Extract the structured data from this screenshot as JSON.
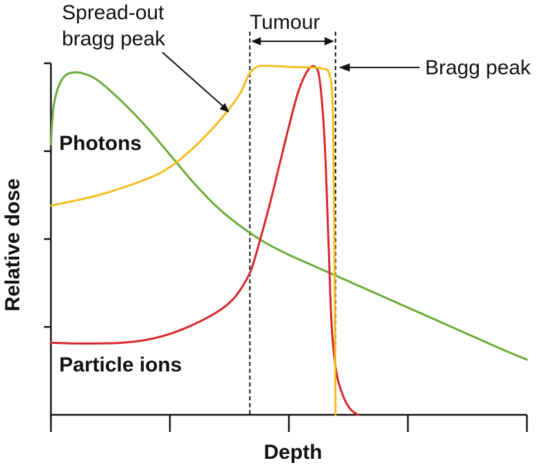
{
  "chart_data": {
    "type": "line",
    "title": "",
    "xlabel": "Depth",
    "ylabel": "Relative dose",
    "xlim": [
      0,
      100
    ],
    "ylim": [
      0,
      100
    ],
    "x_ticks": 4,
    "y_ticks": 4,
    "grid": false,
    "legend": "none",
    "series": [
      {
        "name": "Photons",
        "color": "#6aaa3a",
        "points": [
          [
            0,
            77
          ],
          [
            0.5,
            87
          ],
          [
            1.5,
            93
          ],
          [
            3,
            96.5
          ],
          [
            5,
            97.4
          ],
          [
            7,
            97
          ],
          [
            10,
            95
          ],
          [
            15,
            89
          ],
          [
            20,
            82
          ],
          [
            25,
            74
          ],
          [
            30,
            66
          ],
          [
            35,
            59
          ],
          [
            40,
            53.5
          ],
          [
            45,
            49
          ],
          [
            50,
            45.5
          ],
          [
            55,
            42.5
          ],
          [
            60,
            39.5
          ],
          [
            65,
            36.5
          ],
          [
            70,
            33.5
          ],
          [
            75,
            30.5
          ],
          [
            80,
            27.5
          ],
          [
            85,
            24.5
          ],
          [
            90,
            21.5
          ],
          [
            95,
            18.5
          ],
          [
            100,
            15.7
          ]
        ]
      },
      {
        "name": "Particle ions",
        "color": "#d7262b",
        "points": [
          [
            0,
            20.5
          ],
          [
            5,
            20.3
          ],
          [
            10,
            20.3
          ],
          [
            15,
            20.5
          ],
          [
            20,
            21.3
          ],
          [
            25,
            23
          ],
          [
            30,
            25.7
          ],
          [
            35,
            29.3
          ],
          [
            38,
            32.5
          ],
          [
            40,
            36
          ],
          [
            42,
            41
          ],
          [
            44,
            50
          ],
          [
            46,
            60
          ],
          [
            48,
            71
          ],
          [
            50,
            82
          ],
          [
            52,
            92
          ],
          [
            54,
            98
          ],
          [
            55.5,
            99
          ],
          [
            56.5,
            95
          ],
          [
            57.5,
            78
          ],
          [
            58.3,
            50
          ],
          [
            59,
            25
          ],
          [
            60,
            12
          ],
          [
            61.5,
            5
          ],
          [
            63,
            1.5
          ],
          [
            64.5,
            0
          ]
        ]
      },
      {
        "name": "Spread-out bragg peak",
        "color": "#f4bd1e",
        "points": [
          [
            0,
            59.5
          ],
          [
            10,
            62.5
          ],
          [
            20,
            67
          ],
          [
            25,
            70.5
          ],
          [
            30,
            76
          ],
          [
            35,
            83
          ],
          [
            38,
            88
          ],
          [
            40,
            92
          ],
          [
            41.5,
            96.5
          ],
          [
            43,
            98.8
          ],
          [
            45,
            99.3
          ],
          [
            50,
            99
          ],
          [
            55,
            98.8
          ],
          [
            57,
            98.5
          ],
          [
            58.5,
            97
          ],
          [
            59.2,
            88
          ],
          [
            59.5,
            60
          ],
          [
            59.7,
            20
          ],
          [
            59.8,
            0
          ]
        ]
      }
    ],
    "annotations": {
      "photons": "Photons",
      "particle_ions": "Particle ions",
      "spread_out_bragg_peak": [
        "Spread-out",
        "bragg peak"
      ],
      "tumour": "Tumour",
      "bragg_peak": "Bragg peak"
    },
    "tumour_range": [
      41.8,
      59.8
    ],
    "spread_out_arrow_target": [
      37.5,
      86
    ],
    "bragg_arrow_target": [
      60.2,
      98.8
    ]
  }
}
